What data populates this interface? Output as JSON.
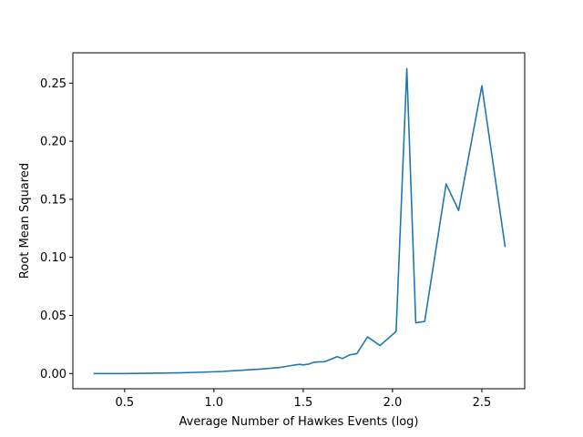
{
  "chart_data": {
    "type": "line",
    "title": "",
    "xlabel": "Average Number of Hawkes Events (log)",
    "ylabel": "Root Mean Squared",
    "xlim": [
      0.21,
      2.74
    ],
    "ylim": [
      -0.0131,
      0.2761
    ],
    "xticks": [
      0.5,
      1.0,
      1.5,
      2.0,
      2.5
    ],
    "xtick_labels": [
      "0.5",
      "1.0",
      "1.5",
      "2.0",
      "2.5"
    ],
    "yticks": [
      0.0,
      0.05,
      0.1,
      0.15,
      0.2,
      0.25
    ],
    "ytick_labels": [
      "0.00",
      "0.05",
      "0.10",
      "0.15",
      "0.20",
      "0.25"
    ],
    "grid": false,
    "legend": "none",
    "series": [
      {
        "color": "#1f77b4",
        "points": [
          [
            0.33,
            0.0
          ],
          [
            0.5,
            0.0
          ],
          [
            0.6,
            0.0002
          ],
          [
            0.7,
            0.0004
          ],
          [
            0.8,
            0.0006
          ],
          [
            0.9,
            0.001
          ],
          [
            1.0,
            0.0015
          ],
          [
            1.05,
            0.0018
          ],
          [
            1.1,
            0.0023
          ],
          [
            1.15,
            0.0027
          ],
          [
            1.18,
            0.0031
          ],
          [
            1.22,
            0.0034
          ],
          [
            1.26,
            0.0038
          ],
          [
            1.3,
            0.0043
          ],
          [
            1.34,
            0.0049
          ],
          [
            1.37,
            0.0053
          ],
          [
            1.4,
            0.006
          ],
          [
            1.43,
            0.0068
          ],
          [
            1.46,
            0.0075
          ],
          [
            1.48,
            0.0079
          ],
          [
            1.5,
            0.0074
          ],
          [
            1.53,
            0.0081
          ],
          [
            1.56,
            0.0097
          ],
          [
            1.58,
            0.01
          ],
          [
            1.62,
            0.0102
          ],
          [
            1.65,
            0.012
          ],
          [
            1.69,
            0.0145
          ],
          [
            1.72,
            0.0129
          ],
          [
            1.76,
            0.0161
          ],
          [
            1.8,
            0.0171
          ],
          [
            1.86,
            0.0315
          ],
          [
            1.93,
            0.0241
          ],
          [
            2.02,
            0.0363
          ],
          [
            2.08,
            0.2625
          ],
          [
            2.13,
            0.0437
          ],
          [
            2.18,
            0.0448
          ],
          [
            2.3,
            0.1633
          ],
          [
            2.37,
            0.1404
          ],
          [
            2.5,
            0.2477
          ],
          [
            2.63,
            0.1095
          ]
        ]
      }
    ]
  }
}
